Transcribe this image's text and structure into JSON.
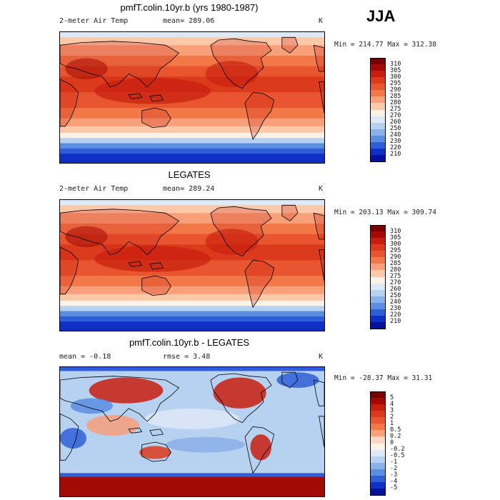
{
  "season": "JJA",
  "panels": [
    {
      "title": "pmfT.colin.10yr.b (yrs 1980-1987)",
      "left_label": "2-meter Air Temp",
      "mid_label": "mean= 289.06",
      "unit": "K",
      "minmax": "Min = 214.77  Max = 312.38",
      "colorbar": {
        "labels": [
          "310",
          "305",
          "300",
          "295",
          "290",
          "285",
          "280",
          "275",
          "270",
          "260",
          "250",
          "240",
          "230",
          "220",
          "210"
        ],
        "colors": [
          "#7a0000",
          "#a30a05",
          "#c81e0e",
          "#dc3a1c",
          "#e8552e",
          "#f27848",
          "#f8a07a",
          "#fcc8aa",
          "#fdf2e6",
          "#dde9f7",
          "#b7d1f0",
          "#8ab2e8",
          "#5b8de0",
          "#2f5fd6",
          "#0f2fc6",
          "#02129a"
        ]
      },
      "field": "temp"
    },
    {
      "title": "LEGATES",
      "left_label": "2-meter Air Temp",
      "mid_label": "mean= 289.24",
      "unit": "K",
      "minmax": "Min = 203.13  Max = 309.74",
      "colorbar": {
        "labels": [
          "310",
          "305",
          "300",
          "295",
          "290",
          "285",
          "280",
          "275",
          "270",
          "260",
          "250",
          "240",
          "230",
          "220",
          "210"
        ],
        "colors": [
          "#7a0000",
          "#a30a05",
          "#c81e0e",
          "#dc3a1c",
          "#e8552e",
          "#f27848",
          "#f8a07a",
          "#fcc8aa",
          "#fdf2e6",
          "#dde9f7",
          "#b7d1f0",
          "#8ab2e8",
          "#5b8de0",
          "#2f5fd6",
          "#0f2fc6",
          "#02129a"
        ]
      },
      "field": "temp"
    },
    {
      "title": "pmfT.colin.10yr.b - LEGATES",
      "left_label": "mean =   -0.18",
      "mid_label": "rmse =   3.48",
      "unit": "K",
      "minmax": "Min = -28.37  Max =   31.31",
      "colorbar": {
        "labels": [
          "5",
          "4",
          "3",
          "2",
          "1",
          "0.5",
          "0.2",
          "0",
          "-0.2",
          "-0.5",
          "-1",
          "-2",
          "-3",
          "-4",
          "-5"
        ],
        "colors": [
          "#7a0000",
          "#a30a05",
          "#c81e0e",
          "#dc3a1c",
          "#e8552e",
          "#f27848",
          "#f8a07a",
          "#fcd6c0",
          "#fdf2e6",
          "#dde9f7",
          "#b7d1f0",
          "#8ab2e8",
          "#5b8de0",
          "#2f5fd6",
          "#0f2fc6",
          "#02129a"
        ]
      },
      "field": "diff"
    }
  ]
}
